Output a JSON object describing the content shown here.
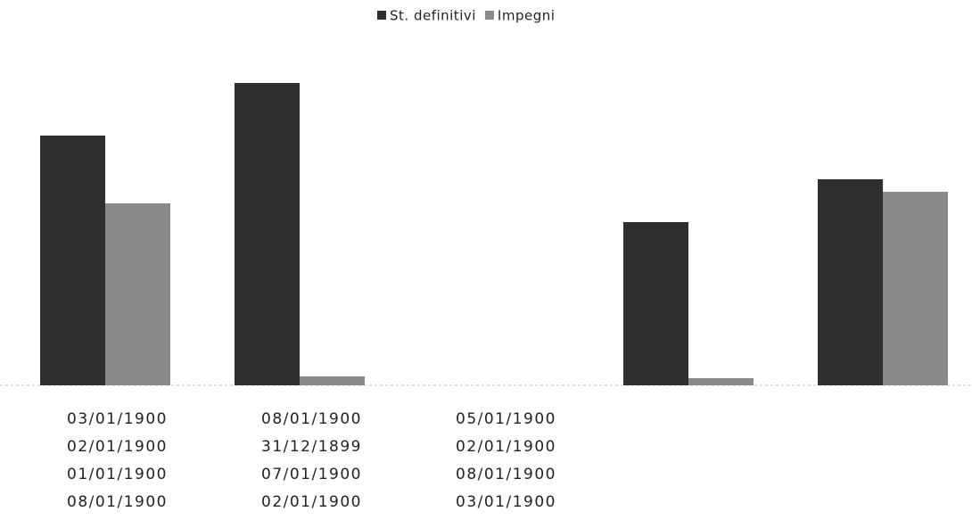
{
  "chart_data": {
    "type": "bar",
    "categories": [
      [
        "03/01/1900",
        "02/01/1900",
        "01/01/1900",
        "08/01/1900"
      ],
      [
        "08/01/1900",
        "31/12/1899",
        "07/01/1900",
        "02/01/1900"
      ],
      [
        "05/01/1900",
        "02/01/1900",
        "08/01/1900",
        "03/01/1900"
      ],
      null,
      null
    ],
    "series": [
      {
        "name": "St. definitivi",
        "color": "#2f2f2f",
        "values": [
          280,
          339,
          null,
          183,
          231
        ]
      },
      {
        "name": "Impegni",
        "color": "#8a8a8a",
        "values": [
          204,
          10,
          null,
          8,
          217
        ]
      }
    ],
    "ylim": [
      0,
      340
    ],
    "legend": "top"
  }
}
